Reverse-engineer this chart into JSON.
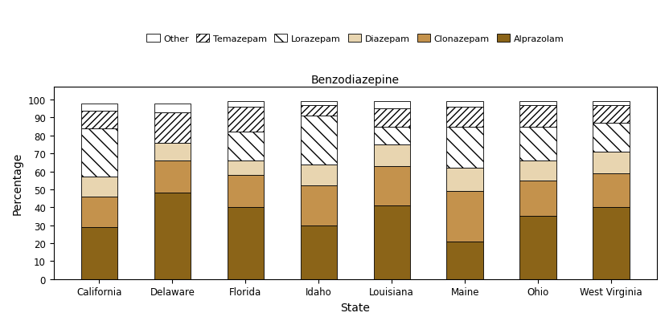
{
  "states": [
    "California",
    "Delaware",
    "Florida",
    "Idaho",
    "Louisiana",
    "Maine",
    "Ohio",
    "West Virginia"
  ],
  "categories": [
    "Alprazolam",
    "Clonazepam",
    "Diazepam",
    "Lorazepam",
    "Temazepam",
    "Other"
  ],
  "values": {
    "California": [
      29,
      17,
      11,
      27,
      10,
      4
    ],
    "Delaware": [
      48,
      18,
      10,
      0,
      17,
      5
    ],
    "Florida": [
      40,
      18,
      8,
      16,
      14,
      3
    ],
    "Idaho": [
      30,
      22,
      12,
      27,
      6,
      2
    ],
    "Louisiana": [
      41,
      22,
      12,
      10,
      10,
      4
    ],
    "Maine": [
      21,
      28,
      13,
      23,
      11,
      3
    ],
    "Ohio": [
      35,
      20,
      11,
      19,
      12,
      2
    ],
    "West Virginia": [
      40,
      19,
      12,
      16,
      10,
      2
    ]
  },
  "bar_colors": {
    "Alprazolam": "#8B6418",
    "Clonazepam": "#C4924C",
    "Diazepam": "#E8D5B0",
    "Lorazepam": "#FFFFFF",
    "Temazepam": "#FFFFFF",
    "Other": "#FFFFFF"
  },
  "bar_hatches": {
    "Alprazolam": "",
    "Clonazepam": "",
    "Diazepam": "",
    "Lorazepam": "\\\\",
    "Temazepam": "////",
    "Other": ""
  },
  "title": "Benzodiazepine",
  "xlabel": "State",
  "ylabel": "Percentage",
  "ylim": [
    0,
    105
  ],
  "yticks": [
    0,
    10,
    20,
    30,
    40,
    50,
    60,
    70,
    80,
    90,
    100
  ],
  "legend_order": [
    "Other",
    "Temazepam",
    "Lorazepam",
    "Diazepam",
    "Clonazepam",
    "Alprazolam"
  ]
}
